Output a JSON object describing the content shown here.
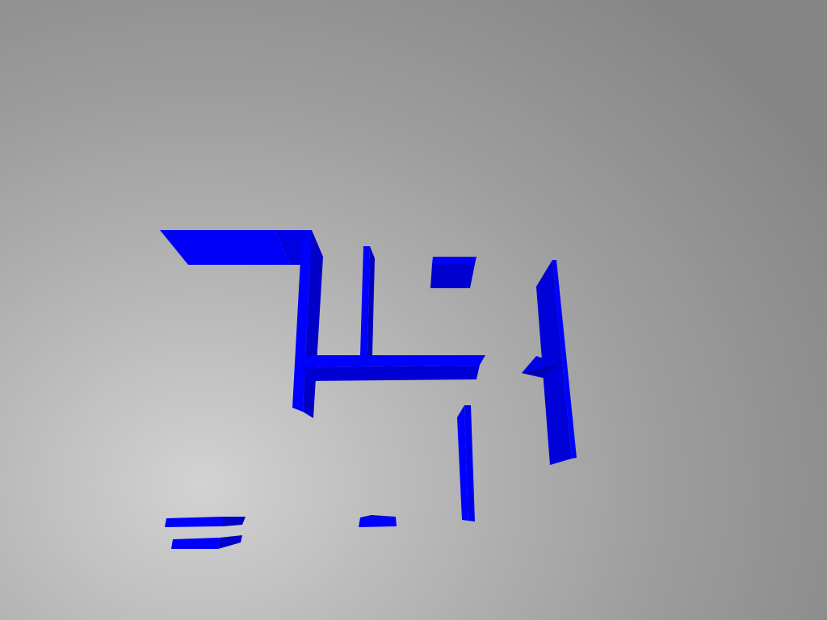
{
  "scene": {
    "description_free": true,
    "background_colors": {
      "light": "#d2d2d2",
      "mid": "#a8a8a8",
      "dark": "#868686"
    },
    "wall_colors": {
      "top": "#0000ff",
      "front": "#0000d8",
      "side": "#0000b0"
    },
    "wall_count": 12
  }
}
